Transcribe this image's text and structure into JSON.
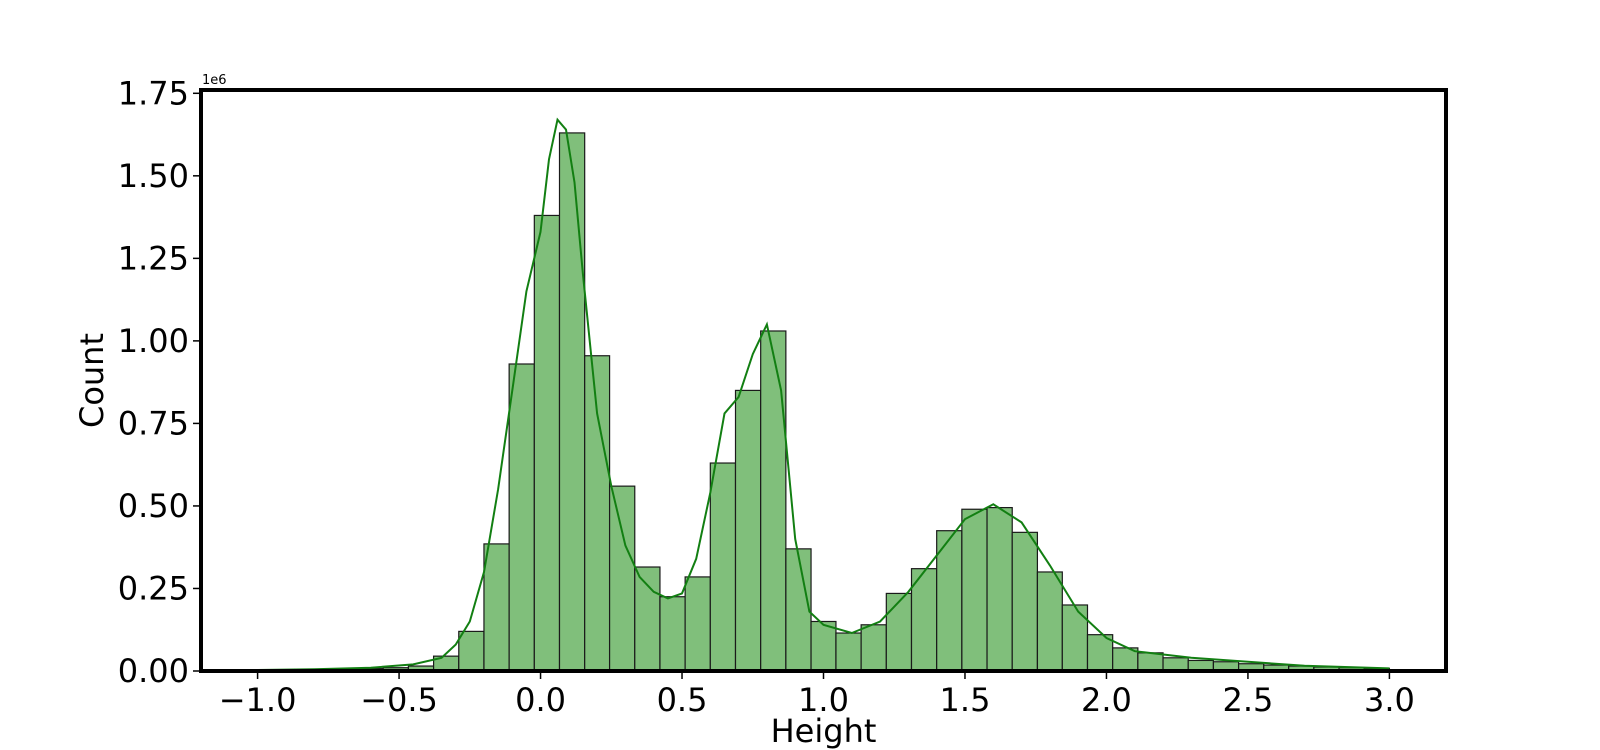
{
  "chart_data": {
    "type": "bar",
    "subtype": "histogram-with-kde",
    "title": "",
    "xlabel": "Height",
    "ylabel": "Count",
    "y_offset_label": "1e6",
    "y_scale": 1000000,
    "xlim": [
      -1.2,
      3.2
    ],
    "ylim": [
      0,
      1760000
    ],
    "x_ticks": [
      -1.0,
      -0.5,
      0.0,
      0.5,
      1.0,
      1.5,
      2.0,
      2.5,
      3.0
    ],
    "x_tick_labels": [
      "−1.0",
      "−0.5",
      "0.0",
      "0.5",
      "1.0",
      "1.5",
      "2.0",
      "2.5",
      "3.0"
    ],
    "y_ticks": [
      0,
      250000,
      500000,
      750000,
      1000000,
      1250000,
      1500000,
      1750000
    ],
    "y_tick_labels": [
      "0.00",
      "0.25",
      "0.50",
      "0.75",
      "1.00",
      "1.25",
      "1.50",
      "1.75"
    ],
    "grid": false,
    "legend": "none",
    "bar_fill": "#80bf7b",
    "bar_edge": "#1a1a1a",
    "kde_color": "#127f12",
    "bin_edges": [
      -1.0,
      -0.911,
      -0.822,
      -0.733,
      -0.644,
      -0.556,
      -0.467,
      -0.378,
      -0.289,
      -0.2,
      -0.111,
      -0.022,
      0.067,
      0.156,
      0.244,
      0.333,
      0.422,
      0.511,
      0.6,
      0.689,
      0.778,
      0.867,
      0.956,
      1.044,
      1.133,
      1.222,
      1.311,
      1.4,
      1.489,
      1.578,
      1.667,
      1.756,
      1.844,
      1.933,
      2.022,
      2.111,
      2.2,
      2.289,
      2.378,
      2.467,
      2.556,
      2.644,
      2.733,
      2.822,
      2.911,
      3.0
    ],
    "counts": [
      2000,
      3000,
      4000,
      6000,
      8000,
      10000,
      15000,
      45000,
      120000,
      385000,
      930000,
      1380000,
      1630000,
      955000,
      560000,
      315000,
      225000,
      285000,
      630000,
      850000,
      1030000,
      370000,
      150000,
      115000,
      140000,
      235000,
      310000,
      425000,
      490000,
      495000,
      420000,
      300000,
      200000,
      110000,
      70000,
      55000,
      40000,
      32000,
      28000,
      22000,
      18000,
      15000,
      12000,
      10000,
      8000
    ],
    "kde_x": [
      -1.0,
      -0.8,
      -0.6,
      -0.45,
      -0.35,
      -0.3,
      -0.25,
      -0.2,
      -0.15,
      -0.1,
      -0.05,
      0.0,
      0.03,
      0.06,
      0.09,
      0.12,
      0.15,
      0.2,
      0.25,
      0.3,
      0.35,
      0.4,
      0.45,
      0.5,
      0.55,
      0.6,
      0.65,
      0.7,
      0.75,
      0.8,
      0.85,
      0.9,
      0.95,
      1.0,
      1.1,
      1.2,
      1.3,
      1.4,
      1.5,
      1.6,
      1.7,
      1.8,
      1.9,
      2.0,
      2.1,
      2.3,
      2.5,
      2.7,
      3.0
    ],
    "kde_y": [
      3000,
      5000,
      10000,
      20000,
      40000,
      80000,
      150000,
      300000,
      550000,
      850000,
      1150000,
      1330000,
      1550000,
      1670000,
      1640000,
      1480000,
      1200000,
      780000,
      560000,
      380000,
      285000,
      240000,
      220000,
      235000,
      340000,
      540000,
      780000,
      830000,
      960000,
      1050000,
      850000,
      400000,
      180000,
      140000,
      115000,
      150000,
      240000,
      350000,
      460000,
      505000,
      450000,
      320000,
      180000,
      100000,
      60000,
      40000,
      28000,
      16000,
      8000
    ]
  }
}
